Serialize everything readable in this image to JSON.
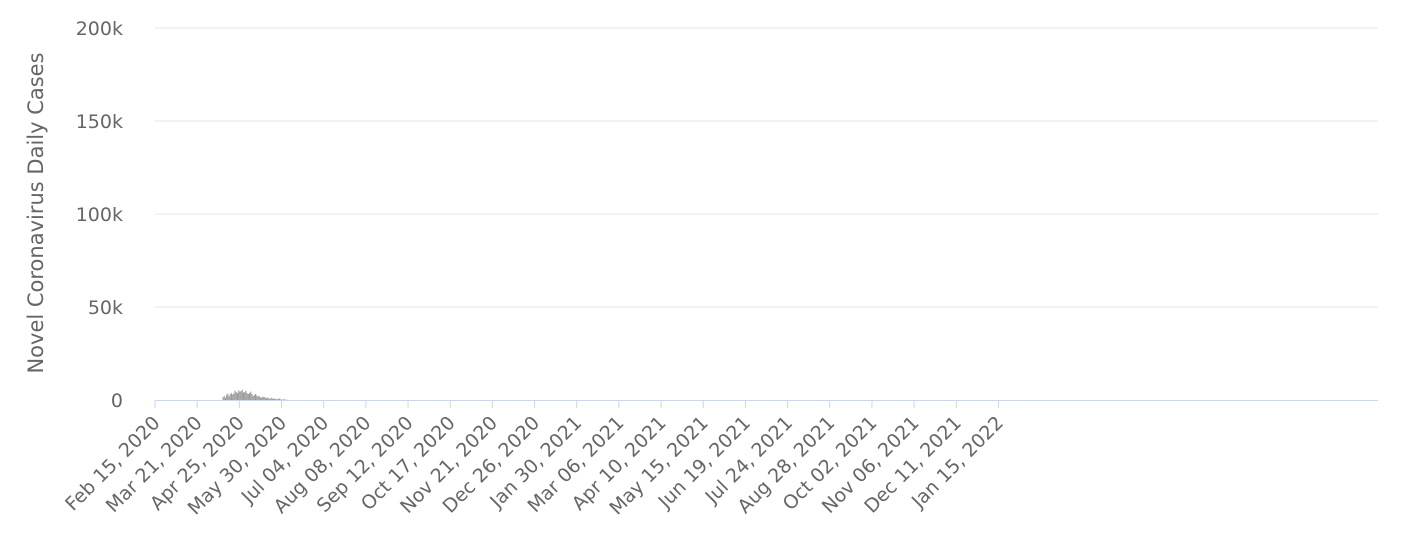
{
  "chart_data": {
    "type": "bar",
    "ylabel": "Novel Coronavirus Daily Cases",
    "xlabel": "",
    "ylim": [
      0,
      200000
    ],
    "y_ticks": [
      {
        "value": 0,
        "label": "0"
      },
      {
        "value": 50000,
        "label": "50k"
      },
      {
        "value": 100000,
        "label": "100k"
      },
      {
        "value": 150000,
        "label": "150k"
      },
      {
        "value": 200000,
        "label": "200k"
      }
    ],
    "x_tick_labels": [
      "Feb 15, 2020",
      "Mar 21, 2020",
      "Apr 25, 2020",
      "May 30, 2020",
      "Jul 04, 2020",
      "Aug 08, 2020",
      "Sep 12, 2020",
      "Oct 17, 2020",
      "Nov 21, 2020",
      "Dec 26, 2020",
      "Jan 30, 2021",
      "Mar 06, 2021",
      "Apr 10, 2021",
      "May 15, 2021",
      "Jun 19, 2021",
      "Jul 24, 2021",
      "Aug 28, 2021",
      "Oct 02, 2021",
      "Nov 06, 2021",
      "Dec 11, 2021",
      "Jan 15, 2022"
    ],
    "x_start": "Feb 15, 2020",
    "x_end": "Jan 25, 2022",
    "grid": true,
    "bar_color": "#999999",
    "grid_color": "#e6e6e6",
    "baseline_color": "#ccd6eb",
    "series": [
      {
        "values": [
          0,
          0,
          0,
          0,
          0,
          0,
          0,
          0,
          0,
          0,
          0,
          0,
          0,
          0,
          0,
          0,
          0,
          0,
          0,
          0,
          0,
          0,
          0,
          0,
          0,
          0,
          0,
          0,
          0,
          0,
          0,
          0,
          0,
          0,
          0,
          0,
          0,
          0,
          0,
          0,
          0,
          0,
          0,
          0,
          0,
          0,
          0,
          0,
          0,
          0,
          0,
          0,
          0,
          0,
          0,
          0,
          1500,
          2200,
          1200,
          2800,
          3400,
          2000,
          3100,
          3600,
          3000,
          3500,
          5000,
          4200,
          3700,
          5200,
          4500,
          4800,
          5500,
          4000,
          4300,
          4900,
          3600,
          3200,
          3800,
          4500,
          3200,
          2200,
          2600,
          3200,
          2400,
          1900,
          2100,
          1500,
          1200,
          1800,
          1600,
          1400,
          1000,
          1300,
          900,
          700,
          1200,
          800,
          600,
          900,
          500,
          400,
          600,
          800,
          300,
          200,
          300,
          400,
          100,
          200,
          0,
          0,
          0,
          0,
          0,
          0,
          0,
          0,
          0,
          0,
          0,
          0,
          0,
          0,
          0,
          0,
          0,
          0,
          0,
          0,
          0,
          0,
          0,
          0,
          0,
          0,
          0,
          0,
          0,
          0,
          0,
          0,
          0,
          0,
          0,
          0,
          0,
          0,
          0,
          0,
          0,
          0,
          0,
          0,
          0,
          0,
          0,
          0,
          0,
          0,
          0,
          0,
          0,
          0,
          0,
          0,
          0,
          0,
          0,
          0,
          0,
          0,
          0,
          0,
          0,
          0,
          0,
          0,
          0,
          0,
          0,
          0,
          0,
          0,
          0,
          0,
          0,
          0,
          0,
          0,
          0,
          0,
          0,
          0,
          0,
          0,
          0,
          0,
          0,
          0,
          0,
          0,
          0,
          0,
          0,
          0,
          0,
          0,
          0,
          0,
          0,
          0,
          0,
          0,
          0,
          0,
          0,
          0,
          0,
          0,
          0,
          0,
          0,
          0,
          0,
          0,
          0,
          0,
          0,
          0,
          0,
          0,
          0,
          0,
          0,
          0,
          0,
          0,
          0,
          0,
          0,
          0,
          0,
          0,
          0,
          0,
          0,
          0,
          0,
          0,
          0,
          0,
          0,
          0,
          0,
          0,
          0,
          0,
          0,
          0,
          0,
          0,
          0,
          0,
          0,
          0,
          0,
          0,
          0,
          0,
          0,
          0,
          0,
          0,
          0,
          0,
          0,
          0,
          0,
          0,
          0,
          0,
          0,
          0,
          0,
          0,
          0,
          0,
          0,
          0,
          0,
          0,
          0,
          0,
          0,
          0,
          0,
          0,
          0,
          0,
          0,
          0,
          0,
          0,
          0,
          0,
          0,
          0,
          0,
          0,
          0,
          0,
          0,
          0,
          0,
          0,
          0,
          0,
          0,
          0,
          0,
          0,
          0,
          0,
          0,
          0,
          0,
          0,
          0,
          0,
          0,
          0,
          0,
          0,
          0,
          0,
          0,
          0,
          0,
          0,
          0,
          0,
          0,
          0,
          0,
          0,
          0,
          0,
          0,
          0,
          0,
          0,
          0,
          0,
          0,
          0,
          0,
          0,
          0,
          0,
          0,
          0,
          0,
          0,
          0,
          0,
          0,
          0,
          0,
          0,
          0,
          0,
          0,
          0,
          0,
          0,
          0,
          0,
          0,
          0,
          0,
          0,
          0,
          0,
          0,
          0,
          0,
          0,
          0,
          0,
          0,
          0,
          0,
          0,
          0,
          0,
          0,
          0,
          0,
          0,
          0,
          0,
          0,
          0,
          0,
          0,
          0,
          0,
          0,
          0,
          0,
          0,
          0,
          0,
          0,
          0,
          0,
          0,
          0,
          0,
          0,
          0,
          0,
          0,
          0,
          0,
          0,
          0,
          0,
          0,
          0,
          0,
          0,
          0,
          0,
          0,
          0,
          0,
          0,
          0,
          0,
          0,
          0,
          0,
          0,
          0,
          0,
          0,
          0,
          0,
          0,
          0,
          0,
          0,
          0,
          0,
          0,
          0,
          0,
          0,
          0,
          0,
          0,
          0,
          0,
          0,
          0,
          0,
          0,
          0,
          0,
          0,
          0,
          0,
          0,
          0,
          0,
          0,
          0,
          0,
          0,
          0,
          0,
          0,
          0,
          0,
          0,
          0,
          0,
          0,
          0,
          0,
          0,
          0,
          0,
          0,
          0,
          0,
          0,
          0,
          0,
          0,
          0,
          0,
          0,
          0,
          0,
          0,
          0,
          0,
          0,
          0,
          0,
          0,
          0,
          0,
          0,
          0,
          0,
          0,
          0,
          0,
          0,
          0,
          0,
          0,
          0,
          0,
          0,
          0,
          0,
          0,
          0,
          0,
          0,
          0,
          0,
          0,
          0,
          0,
          0,
          0,
          0,
          0,
          0,
          0,
          0,
          0,
          0,
          0,
          0,
          0,
          0,
          0,
          0,
          0,
          0,
          0,
          0,
          0,
          0,
          0,
          0,
          0,
          0,
          0,
          0,
          0,
          0,
          0,
          0,
          0,
          0,
          0,
          0,
          0,
          0,
          0,
          0,
          0,
          0,
          0,
          0,
          0,
          0,
          0,
          0,
          0,
          0,
          0,
          0,
          0,
          0,
          0,
          0,
          0,
          0,
          0,
          0,
          0,
          0,
          0,
          0,
          0,
          0,
          0,
          0,
          0,
          0,
          0,
          0,
          0,
          0,
          0,
          0,
          0,
          0,
          0,
          0,
          0,
          0,
          0,
          0,
          0,
          0,
          0,
          0,
          0,
          0,
          0,
          0,
          0,
          0,
          0,
          0,
          0,
          0,
          0,
          0,
          0,
          0,
          0,
          0,
          0,
          0,
          0,
          0,
          0,
          0,
          0,
          0,
          0,
          0,
          0,
          0,
          0,
          0,
          0,
          0,
          0,
          0,
          0,
          0,
          0,
          0,
          0,
          0,
          0,
          0,
          0,
          0,
          0,
          0,
          0,
          0,
          0,
          0,
          0,
          0,
          0,
          0,
          0,
          0,
          0,
          0,
          0,
          0,
          0,
          0,
          0,
          0,
          0,
          0,
          0,
          0,
          0,
          0,
          0,
          0,
          0,
          0,
          0,
          0,
          0,
          0,
          0,
          0,
          0,
          0,
          0,
          0,
          0,
          0,
          0,
          0,
          0,
          0,
          0,
          0,
          0,
          0,
          0,
          0,
          0,
          0,
          0,
          0,
          0,
          0,
          0,
          0,
          0,
          0,
          0,
          0,
          0,
          0,
          0,
          0,
          0,
          0,
          0,
          0,
          0,
          0,
          0,
          0,
          0,
          0,
          0,
          0,
          0,
          0,
          0,
          0,
          0,
          0,
          0,
          0,
          0,
          0,
          0,
          0,
          0,
          0,
          0,
          0,
          0,
          0,
          0,
          0,
          0,
          0,
          0,
          0,
          0,
          0,
          0,
          0,
          0,
          0,
          0,
          0,
          0,
          0,
          0,
          0,
          0,
          0,
          0,
          0,
          0,
          0,
          0,
          0,
          0,
          0,
          0,
          0,
          0,
          0,
          0,
          0,
          0,
          0,
          0,
          0,
          0,
          0,
          0,
          0,
          0,
          0,
          0,
          0,
          0,
          0,
          0,
          0,
          0,
          0,
          0,
          0,
          0,
          0,
          0,
          0,
          0,
          0,
          0,
          0,
          0,
          0,
          0,
          0,
          0,
          0,
          0,
          0,
          0,
          0,
          0,
          0,
          0,
          0,
          0,
          0,
          0,
          0,
          0,
          0,
          0,
          0,
          0,
          0,
          0,
          0,
          0,
          0,
          0,
          0,
          0,
          0,
          0,
          0,
          0,
          0,
          0,
          0,
          0,
          0,
          0,
          0,
          0,
          0,
          0,
          0,
          0,
          0,
          0,
          0,
          0,
          0,
          0,
          0,
          0,
          0,
          0,
          0,
          0,
          0,
          0,
          0,
          0,
          0,
          0,
          0,
          0,
          0,
          0,
          0,
          0,
          0,
          0,
          0,
          0,
          0,
          0,
          0,
          0,
          0,
          0,
          0,
          0,
          0,
          0,
          0,
          0,
          0,
          0,
          0,
          0,
          0,
          0,
          0,
          0,
          0,
          0,
          0,
          0,
          0,
          0,
          0,
          0,
          0,
          0,
          0,
          0,
          0,
          0,
          0,
          0,
          0,
          0,
          0,
          0,
          0,
          0,
          0,
          0,
          0,
          0,
          0,
          0,
          0,
          0,
          0,
          0,
          0,
          0,
          0,
          0,
          0,
          0,
          0,
          0,
          0,
          0,
          0,
          0,
          0,
          0,
          0,
          0,
          0,
          0,
          0,
          0,
          0,
          0,
          0,
          0,
          0,
          0,
          0,
          0,
          0,
          0,
          0,
          0,
          0,
          0,
          0,
          0,
          0,
          0,
          0,
          0,
          0,
          0,
          0,
          0,
          0,
          0,
          0,
          0,
          0,
          0,
          0,
          0,
          0,
          0,
          0,
          0,
          0
        ]
      }
    ]
  }
}
